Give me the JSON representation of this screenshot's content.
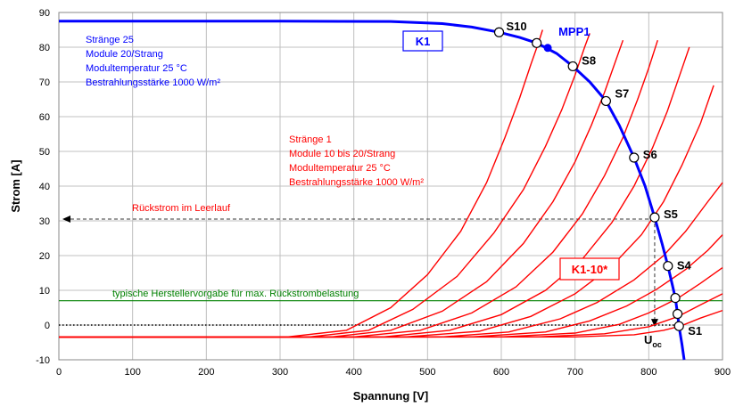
{
  "chart_data": {
    "type": "line",
    "xlabel": "Spannung [V]",
    "ylabel": "Strom [A]",
    "xlim": [
      0,
      900
    ],
    "ylim": [
      -10,
      90
    ],
    "xticks": [
      0,
      100,
      200,
      300,
      400,
      500,
      600,
      700,
      800,
      900
    ],
    "yticks": [
      -10,
      0,
      10,
      20,
      30,
      40,
      50,
      60,
      70,
      80,
      90
    ],
    "grid": true,
    "colors": {
      "k1": "#0000ff",
      "k1_10": "#ff0000",
      "limit": "#008000",
      "marker": "#0000ff"
    },
    "k1_curve": {
      "name": "K1",
      "points": [
        [
          0,
          87.5
        ],
        [
          300,
          87.5
        ],
        [
          450,
          87.4
        ],
        [
          520,
          86.8
        ],
        [
          560,
          85.8
        ],
        [
          597,
          84.3
        ],
        [
          625,
          82.8
        ],
        [
          648,
          81.2
        ],
        [
          675,
          78.2
        ],
        [
          697,
          74.5
        ],
        [
          720,
          70.0
        ],
        [
          742,
          64.5
        ],
        [
          760,
          57.5
        ],
        [
          780,
          48.2
        ],
        [
          795,
          40.0
        ],
        [
          808,
          31.0
        ],
        [
          818,
          23.5
        ],
        [
          826,
          17.0
        ],
        [
          832,
          11.5
        ],
        [
          836,
          7.8
        ],
        [
          839,
          3.2
        ],
        [
          841,
          -0.3
        ],
        [
          845,
          -5.5
        ],
        [
          848,
          -10
        ]
      ]
    },
    "k1_10_curves": {
      "name": "K1-10*",
      "series": [
        {
          "module_count": 10,
          "points": [
            [
              0,
              -3.5
            ],
            [
              700,
              -3.4
            ],
            [
              780,
              -2.8
            ],
            [
              820,
              -1.5
            ],
            [
              843,
              -0.3
            ],
            [
              870,
              2.0
            ],
            [
              900,
              4.2
            ]
          ]
        },
        {
          "module_count": 11,
          "points": [
            [
              0,
              -3.5
            ],
            [
              650,
              -3.4
            ],
            [
              740,
              -2.5
            ],
            [
              800,
              -0.5
            ],
            [
              840,
              2.5
            ],
            [
              870,
              5.8
            ],
            [
              900,
              9.0
            ]
          ]
        },
        {
          "module_count": 12,
          "points": [
            [
              0,
              -3.5
            ],
            [
              600,
              -3.4
            ],
            [
              700,
              -2.3
            ],
            [
              760,
              0.2
            ],
            [
              800,
              3.5
            ],
            [
              840,
              7.8
            ],
            [
              870,
              12.0
            ],
            [
              900,
              16.5
            ]
          ]
        },
        {
          "module_count": 13,
          "points": [
            [
              0,
              -3.5
            ],
            [
              560,
              -3.4
            ],
            [
              660,
              -2.0
            ],
            [
              720,
              1.2
            ],
            [
              770,
              5.5
            ],
            [
              810,
              10.2
            ],
            [
              850,
              16.0
            ],
            [
              880,
              21.5
            ],
            [
              900,
              26.0
            ]
          ]
        },
        {
          "module_count": 14,
          "points": [
            [
              0,
              -3.5
            ],
            [
              520,
              -3.4
            ],
            [
              610,
              -2.0
            ],
            [
              680,
              1.8
            ],
            [
              730,
              6.5
            ],
            [
              780,
              13.0
            ],
            [
              820,
              20.0
            ],
            [
              850,
              27.0
            ],
            [
              880,
              35.5
            ],
            [
              900,
              41.0
            ]
          ]
        },
        {
          "module_count": 15,
          "points": [
            [
              0,
              -3.5
            ],
            [
              470,
              -3.4
            ],
            [
              570,
              -1.8
            ],
            [
              640,
              2.5
            ],
            [
              700,
              9.0
            ],
            [
              750,
              17.0
            ],
            [
              790,
              26.0
            ],
            [
              820,
              35.5
            ],
            [
              845,
              46.0
            ],
            [
              870,
              58.0
            ],
            [
              888,
              69.0
            ]
          ]
        },
        {
          "module_count": 16,
          "points": [
            [
              0,
              -3.5
            ],
            [
              440,
              -3.4
            ],
            [
              530,
              -1.5
            ],
            [
              600,
              3.0
            ],
            [
              660,
              10.0
            ],
            [
              710,
              19.0
            ],
            [
              750,
              29.5
            ],
            [
              780,
              40.0
            ],
            [
              805,
              51.0
            ],
            [
              825,
              61.5
            ],
            [
              842,
              72.0
            ],
            [
              855,
              80.0
            ]
          ]
        },
        {
          "module_count": 17,
          "points": [
            [
              0,
              -3.5
            ],
            [
              400,
              -3.4
            ],
            [
              490,
              -1.5
            ],
            [
              560,
              3.5
            ],
            [
              620,
              11.0
            ],
            [
              670,
              21.0
            ],
            [
              710,
              32.0
            ],
            [
              740,
              43.0
            ],
            [
              765,
              54.0
            ],
            [
              785,
              65.0
            ],
            [
              800,
              74.0
            ],
            [
              812,
              82.0
            ]
          ]
        },
        {
          "module_count": 18,
          "points": [
            [
              0,
              -3.5
            ],
            [
              370,
              -3.4
            ],
            [
              450,
              -1.5
            ],
            [
              520,
              4.0
            ],
            [
              580,
              12.5
            ],
            [
              630,
              23.5
            ],
            [
              670,
              35.5
            ],
            [
              700,
              47.0
            ],
            [
              722,
              57.5
            ],
            [
              740,
              67.0
            ],
            [
              755,
              76.0
            ],
            [
              765,
              82.0
            ]
          ]
        },
        {
          "module_count": 19,
          "points": [
            [
              0,
              -3.5
            ],
            [
              340,
              -3.4
            ],
            [
              420,
              -1.5
            ],
            [
              480,
              4.5
            ],
            [
              540,
              14.0
            ],
            [
              590,
              26.5
            ],
            [
              630,
              39.0
            ],
            [
              660,
              51.5
            ],
            [
              682,
              62.0
            ],
            [
              700,
              72.0
            ],
            [
              713,
              80.0
            ],
            [
              720,
              84.0
            ]
          ]
        },
        {
          "module_count": 20,
          "points": [
            [
              0,
              -3.5
            ],
            [
              310,
              -3.4
            ],
            [
              390,
              -1.5
            ],
            [
              450,
              5.0
            ],
            [
              500,
              14.5
            ],
            [
              545,
              27.0
            ],
            [
              580,
              41.0
            ],
            [
              605,
              54.0
            ],
            [
              625,
              65.5
            ],
            [
              640,
              75.0
            ],
            [
              650,
              81.0
            ],
            [
              656,
              85.0
            ]
          ]
        }
      ]
    },
    "intersection_points": [
      {
        "label": "S1",
        "x": 841,
        "y": -0.3
      },
      {
        "label": "",
        "x": 839,
        "y": 3.2
      },
      {
        "label": "",
        "x": 836,
        "y": 7.8
      },
      {
        "label": "S4",
        "x": 826,
        "y": 17.0
      },
      {
        "label": "S5",
        "x": 808,
        "y": 31.0
      },
      {
        "label": "S6",
        "x": 780,
        "y": 48.2
      },
      {
        "label": "S7",
        "x": 742,
        "y": 64.5
      },
      {
        "label": "S8",
        "x": 697,
        "y": 74.5
      },
      {
        "label": "",
        "x": 648,
        "y": 81.2
      },
      {
        "label": "S10",
        "x": 597,
        "y": 84.3
      }
    ],
    "mpp": {
      "label": "MPP1",
      "x": 663,
      "y": 79.8
    },
    "reverse_current_line": {
      "label": "Rückstrom im Leerlauf",
      "y": 30.5,
      "x_from": 808,
      "x_to": 0
    },
    "uoc_drop": {
      "label": "U",
      "subscript": "oc",
      "x": 808,
      "y_from": 31.0,
      "y_to": -0.3
    },
    "zero_line": {
      "y": 0,
      "x_from": 0,
      "x_to": 840
    },
    "limit_line": {
      "label": "typische Herstellervorgabe für max. Rückstrombelastung",
      "y": 7.0
    },
    "annotations": {
      "k1_box": "K1",
      "k1_10_box": "K1-10*",
      "blue_params": [
        "Stränge 25",
        "Module 20/Strang",
        "Modultemperatur 25 °C",
        "Bestrahlungsstärke 1000 W/m²"
      ],
      "red_params": [
        "Stränge 1",
        "Module 10 bis 20/Strang",
        "Modultemperatur 25 °C",
        "Bestrahlungsstärke 1000 W/m²"
      ]
    }
  }
}
